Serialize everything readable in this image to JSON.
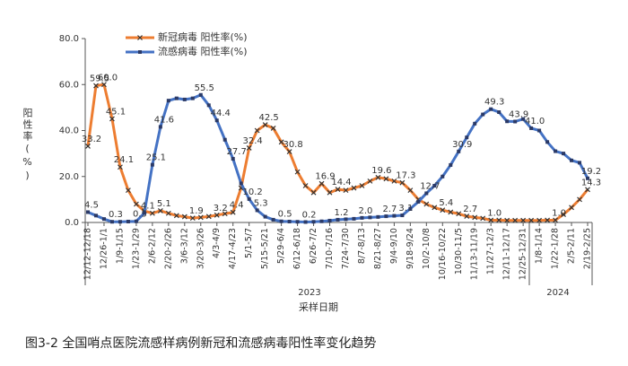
{
  "chart_data": {
    "type": "line",
    "y_label": "阳性率(%)",
    "x_label": "采样日期",
    "caption": "图3-2 全国哨点医院流感样病例新冠和流感病毒阳性率变化趋势",
    "year_labels": [
      "2023",
      "2024"
    ],
    "categories": [
      "12/12-12/18",
      null,
      "12/26-1/1",
      null,
      "1/9-1/15",
      null,
      "1/23-1/29",
      null,
      "2/6-2/12",
      null,
      "2/20-2/26",
      null,
      "3/6-3/12",
      null,
      "3/20-3/26",
      null,
      "4/3-4/9",
      null,
      "4/17-4/23",
      null,
      "5/1-5/7",
      null,
      "5/15-5/21",
      null,
      "5/29-6/4",
      null,
      "6/12-6/18",
      null,
      "6/26-7/2",
      null,
      "7/10-7/16",
      null,
      "7/24-7/30",
      null,
      "8/7-8/13",
      null,
      "8/21-8/27",
      null,
      "9/4-9/10",
      null,
      "9/18-9/24",
      null,
      "10/2-10/8",
      null,
      "10/16-10/22",
      null,
      "10/30-11/5",
      null,
      "11/13-11/19",
      null,
      "11/27-12/3",
      null,
      "12/11-12/17",
      null,
      "12/25-12/31",
      null,
      "1/8-1/14",
      null,
      "1/22-1/28",
      null,
      "2/5-2/11",
      null,
      "2/19-2/25"
    ],
    "series": [
      {
        "name": "新冠病毒 阳性率(%)",
        "color": "#ed7d31",
        "marker": "x",
        "values": [
          33.2,
          59.5,
          60.0,
          45.1,
          24.1,
          14,
          8,
          5,
          4,
          5.1,
          4,
          3,
          2.5,
          1.9,
          2.2,
          2.6,
          3.2,
          3.8,
          4.4,
          15,
          32.4,
          40,
          42.5,
          41,
          35,
          30.8,
          22,
          16,
          13,
          16.9,
          13,
          14.4,
          14,
          15,
          16,
          18,
          19.6,
          19,
          18,
          17.3,
          14,
          10,
          8,
          6.5,
          5.4,
          4.5,
          3.8,
          2.7,
          2.2,
          1.8,
          1.0,
          1.0,
          0.9,
          0.9,
          0.9,
          0.9,
          0.9,
          1.0,
          1.0,
          3.5,
          6.5,
          10,
          14.3
        ],
        "value_labels": [
          "33.2",
          "59.5",
          "60.0",
          "45.1",
          "24.1",
          null,
          null,
          null,
          null,
          "5.1",
          null,
          null,
          null,
          "1.9",
          null,
          null,
          "3.2",
          null,
          "4.4",
          null,
          "32.4",
          null,
          "42.5",
          null,
          null,
          "30.8",
          null,
          null,
          null,
          "16.9",
          null,
          "14.4",
          null,
          null,
          null,
          null,
          "19.6",
          null,
          null,
          "17.3",
          null,
          null,
          null,
          null,
          "5.4",
          null,
          null,
          "2.7",
          null,
          null,
          "1.0",
          null,
          null,
          null,
          null,
          null,
          null,
          null,
          "1.0",
          null,
          null,
          null,
          "14.3"
        ]
      },
      {
        "name": "流感病毒 阳性率(%)",
        "color": "#4472c4",
        "marker": "square",
        "values": [
          4.5,
          3,
          1.5,
          0.3,
          0.3,
          0.4,
          0.5,
          4.1,
          25.1,
          41.6,
          53,
          54,
          53.5,
          54,
          55.5,
          51,
          44.4,
          36,
          27.7,
          17,
          10.2,
          5.3,
          2.5,
          1.2,
          0.5,
          0.4,
          0.3,
          0.2,
          0.3,
          0.5,
          0.8,
          1.2,
          1.4,
          1.6,
          2.0,
          2.2,
          2.4,
          2.7,
          2.9,
          3.1,
          6,
          9,
          12.7,
          16,
          20,
          25,
          30.9,
          37,
          43,
          47,
          49.3,
          48,
          44,
          43.9,
          45,
          41.0,
          40,
          35,
          31,
          30,
          27,
          26,
          19.2
        ],
        "value_labels": [
          "4.5",
          null,
          null,
          "0.3",
          null,
          null,
          "0.5",
          "4.1",
          "25.1",
          "41.6",
          null,
          null,
          null,
          null,
          "55.5",
          null,
          "44.4",
          null,
          "27.7",
          null,
          "10.2",
          "5.3",
          null,
          null,
          "0.5",
          null,
          null,
          "0.2",
          null,
          null,
          null,
          "1.2",
          null,
          null,
          "2.0",
          null,
          null,
          "2.7",
          null,
          "3.1",
          null,
          null,
          "12.7",
          null,
          null,
          null,
          "30.9",
          null,
          null,
          null,
          "49.3",
          null,
          null,
          "43.9",
          null,
          "41.0",
          null,
          null,
          null,
          null,
          null,
          null,
          "19.2"
        ]
      }
    ],
    "ylim": [
      0,
      80
    ],
    "yticks": [
      {
        "value": 0,
        "label": "0.0"
      },
      {
        "value": 20,
        "label": "20.0"
      },
      {
        "value": 40,
        "label": "40.0"
      },
      {
        "value": 60,
        "label": "60.0"
      },
      {
        "value": 80,
        "label": "80.0"
      }
    ],
    "legend": "top-left",
    "grid": false
  }
}
